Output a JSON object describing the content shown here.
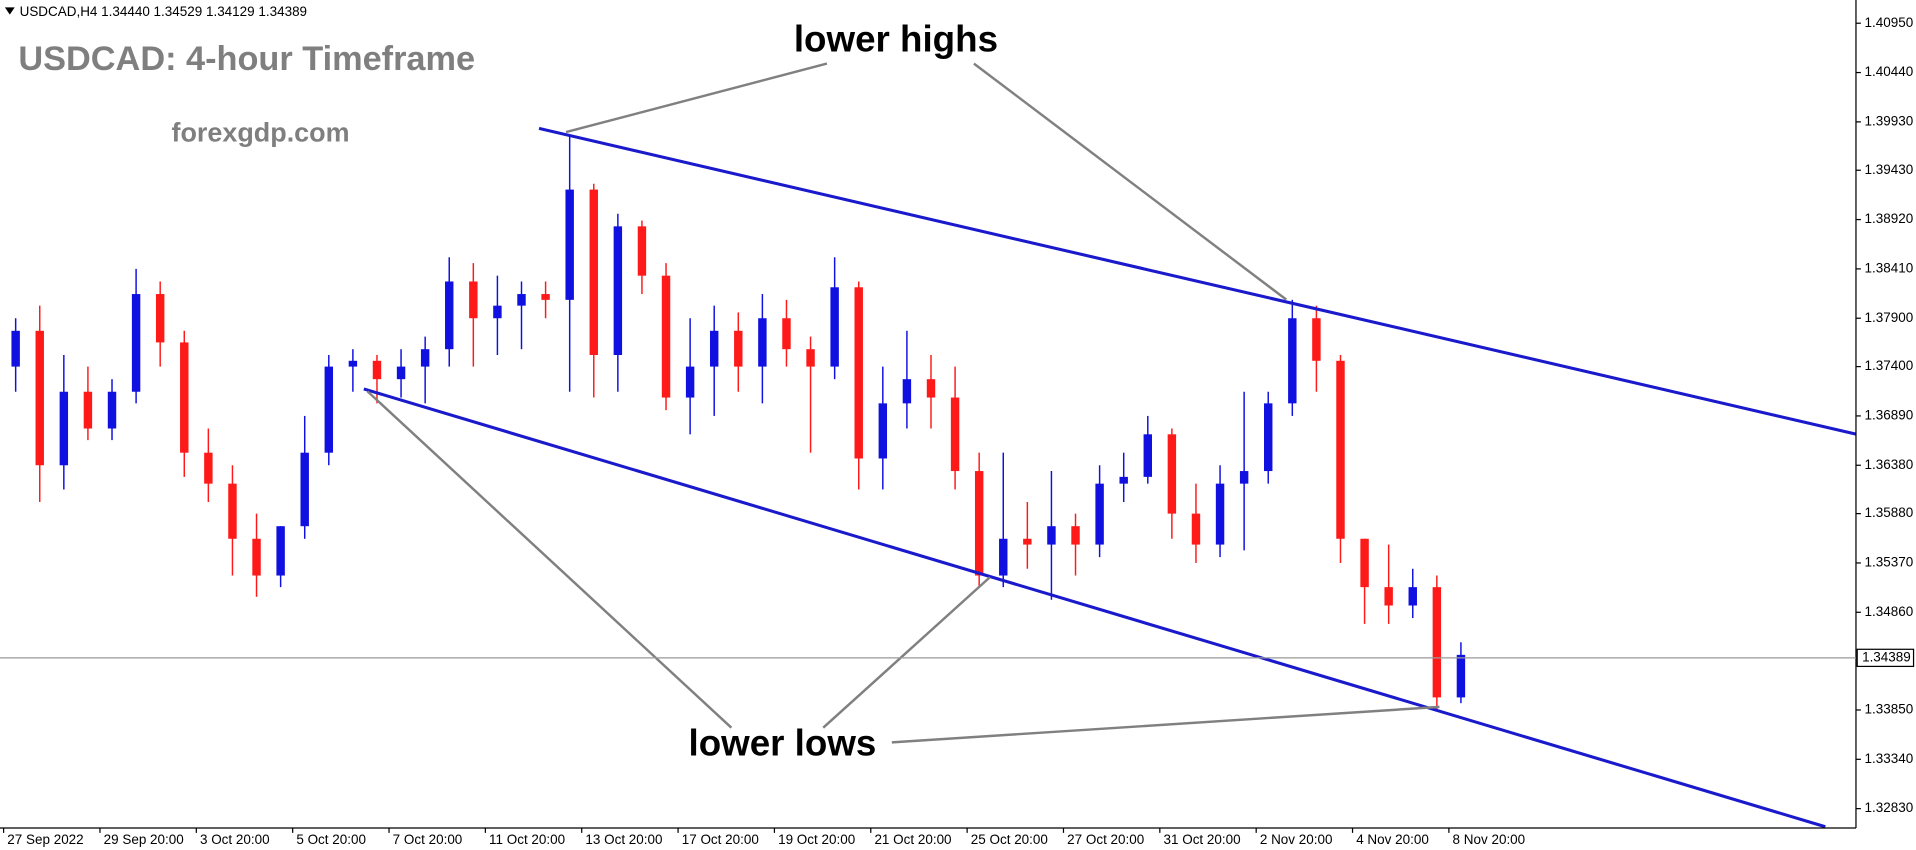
{
  "chart_data": {
    "type": "candlestick",
    "header": "USDCAD,H4  1.34440 1.34529 1.34129 1.34389",
    "title": "USDCAD: 4-hour Timeframe",
    "subtitle": "forexgdp.com",
    "annotations": [
      "lower highs",
      "lower lows"
    ],
    "up_color": "#1010e0",
    "down_color": "#ff1a1a",
    "xlim": [
      -0.15,
      76.9
    ],
    "ylim": [
      1.3263,
      1.4119
    ],
    "xticks": [
      {
        "value": 0,
        "label": "27 Sep 2022"
      },
      {
        "value": 4,
        "label": "29 Sep 20:00"
      },
      {
        "value": 8,
        "label": "3 Oct 20:00"
      },
      {
        "value": 12,
        "label": "5 Oct 20:00"
      },
      {
        "value": 16,
        "label": "7 Oct 20:00"
      },
      {
        "value": 20,
        "label": "11 Oct 20:00"
      },
      {
        "value": 24,
        "label": "13 Oct 20:00"
      },
      {
        "value": 28,
        "label": "17 Oct 20:00"
      },
      {
        "value": 32,
        "label": "19 Oct 20:00"
      },
      {
        "value": 36,
        "label": "21 Oct 20:00"
      },
      {
        "value": 40,
        "label": "25 Oct 20:00"
      },
      {
        "value": 44,
        "label": "27 Oct 20:00"
      },
      {
        "value": 48,
        "label": "31 Oct 20:00"
      },
      {
        "value": 52,
        "label": "2 Nov 20:00"
      },
      {
        "value": 56,
        "label": "4 Nov 20:00"
      },
      {
        "value": 60,
        "label": "8 Nov 20:00"
      }
    ],
    "yticks": [
      {
        "value": 1.4095,
        "label": "1.40950"
      },
      {
        "value": 1.4044,
        "label": "1.40440"
      },
      {
        "value": 1.3993,
        "label": "1.39930"
      },
      {
        "value": 1.3943,
        "label": "1.39430"
      },
      {
        "value": 1.3892,
        "label": "1.38920"
      },
      {
        "value": 1.3841,
        "label": "1.38410"
      },
      {
        "value": 1.379,
        "label": "1.37900"
      },
      {
        "value": 1.374,
        "label": "1.37400"
      },
      {
        "value": 1.3689,
        "label": "1.36890"
      },
      {
        "value": 1.3638,
        "label": "1.36380"
      },
      {
        "value": 1.3588,
        "label": "1.35880"
      },
      {
        "value": 1.3537,
        "label": "1.35370"
      },
      {
        "value": 1.3486,
        "label": "1.34860"
      },
      {
        "value": 1.3385,
        "label": "1.33850"
      },
      {
        "value": 1.3334,
        "label": "1.33340"
      },
      {
        "value": 1.3283,
        "label": "1.32830"
      }
    ],
    "current_price": {
      "value": 1.34389,
      "label": "1.34389"
    },
    "open": [
      1.374,
      1.3777,
      1.3638,
      1.3714,
      1.3676,
      1.3714,
      1.3815,
      1.3765,
      1.3651,
      1.3619,
      1.3562,
      1.3524,
      1.3575,
      1.3651,
      1.374,
      1.3746,
      1.3727,
      1.374,
      1.3758,
      1.3828,
      1.379,
      1.3803,
      1.3815,
      1.3809,
      1.3923,
      1.3752,
      1.3885,
      1.3834,
      1.3708,
      1.374,
      1.3777,
      1.374,
      1.379,
      1.3758,
      1.374,
      1.3822,
      1.3645,
      1.3702,
      1.3727,
      1.3708,
      1.3632,
      1.3524,
      1.3562,
      1.3556,
      1.3575,
      1.3556,
      1.3619,
      1.3626,
      1.367,
      1.3588,
      1.3556,
      1.3619,
      1.3632,
      1.3702,
      1.379,
      1.3746,
      1.3562,
      1.3512,
      1.3493,
      1.3512,
      1.3398
    ],
    "high": [
      1.379,
      1.3803,
      1.3752,
      1.374,
      1.3727,
      1.3841,
      1.3828,
      1.3777,
      1.3676,
      1.3638,
      1.3588,
      1.3575,
      1.3689,
      1.3752,
      1.3758,
      1.3752,
      1.3758,
      1.3771,
      1.3853,
      1.3847,
      1.3834,
      1.3828,
      1.3828,
      1.398,
      1.3929,
      1.3898,
      1.3891,
      1.3847,
      1.379,
      1.3803,
      1.3796,
      1.3815,
      1.3809,
      1.3771,
      1.3853,
      1.3828,
      1.374,
      1.3777,
      1.3752,
      1.374,
      1.3651,
      1.3651,
      1.36,
      1.3632,
      1.3588,
      1.3638,
      1.3651,
      1.3689,
      1.3676,
      1.3619,
      1.3638,
      1.3714,
      1.3714,
      1.3809,
      1.3803,
      1.3752,
      1.3562,
      1.3556,
      1.3531,
      1.3524,
      1.3455
    ],
    "low": [
      1.3714,
      1.36,
      1.3613,
      1.3664,
      1.3664,
      1.3702,
      1.374,
      1.3626,
      1.36,
      1.3524,
      1.3502,
      1.3512,
      1.3562,
      1.3638,
      1.3714,
      1.3702,
      1.3708,
      1.3702,
      1.374,
      1.374,
      1.3752,
      1.3758,
      1.379,
      1.3714,
      1.3708,
      1.3714,
      1.3815,
      1.3695,
      1.367,
      1.3689,
      1.3714,
      1.3702,
      1.374,
      1.3651,
      1.3727,
      1.3613,
      1.3613,
      1.3676,
      1.3676,
      1.3613,
      1.3512,
      1.3512,
      1.3531,
      1.3499,
      1.3524,
      1.3543,
      1.36,
      1.3619,
      1.3562,
      1.3537,
      1.3543,
      1.355,
      1.3619,
      1.3689,
      1.3714,
      1.3537,
      1.3474,
      1.3474,
      1.348,
      1.3385,
      1.3392
    ],
    "close": [
      1.3777,
      1.3638,
      1.3714,
      1.3676,
      1.3714,
      1.3815,
      1.3765,
      1.3651,
      1.3619,
      1.3562,
      1.3524,
      1.3575,
      1.3651,
      1.374,
      1.3746,
      1.3727,
      1.374,
      1.3758,
      1.3828,
      1.379,
      1.3803,
      1.3815,
      1.3809,
      1.3923,
      1.3752,
      1.3885,
      1.3834,
      1.3708,
      1.374,
      1.3777,
      1.374,
      1.379,
      1.3758,
      1.374,
      1.3822,
      1.3645,
      1.3702,
      1.3727,
      1.3708,
      1.3632,
      1.3524,
      1.3562,
      1.3556,
      1.3575,
      1.3556,
      1.3619,
      1.3626,
      1.367,
      1.3588,
      1.3556,
      1.3619,
      1.3632,
      1.3702,
      1.379,
      1.3746,
      1.3562,
      1.3512,
      1.3493,
      1.3512,
      1.3398,
      1.3442
    ]
  }
}
